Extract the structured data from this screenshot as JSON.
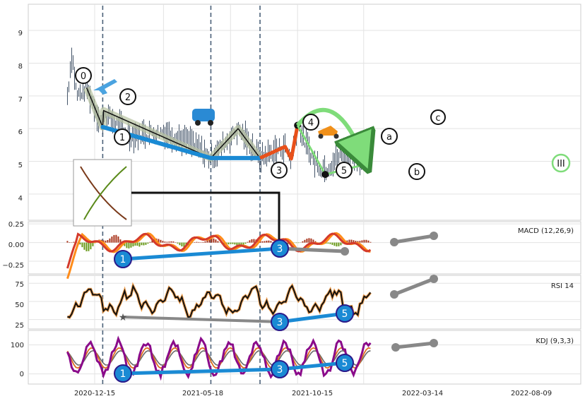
{
  "chart_data": {
    "type": "line",
    "x_ticks": [
      "2020-12-15",
      "2021-05-18",
      "2021-10-15",
      "2022-03-14",
      "2022-08-09"
    ],
    "markers": [
      "2021-01-02",
      "2021-09-01",
      "2021-12-20"
    ],
    "price": {
      "ylim": [
        3.2,
        9.8
      ],
      "y_ticks": [
        4,
        5,
        6,
        7,
        8,
        9
      ],
      "wave_points": [
        {
          "label": "0",
          "date": "2020-11-27",
          "value": 7.25
        },
        {
          "label": "1",
          "date": "2021-01-02",
          "value": 6.05
        },
        {
          "label": "2",
          "date": "2021-01-04",
          "value": 6.55
        },
        {
          "label": "3",
          "date": "2021-09-01",
          "value": 5.1
        },
        {
          "label": "4",
          "date": "2021-11-01",
          "value": 6.0
        },
        {
          "label": "5",
          "date": "2021-12-20",
          "value": 5.1
        },
        {
          "label": "a",
          "date": "2022-02-14",
          "value": 5.45
        },
        {
          "label": "b",
          "date": "2022-02-28",
          "value": 5.08
        },
        {
          "label": "c",
          "date": "2022-03-14",
          "value": 6.1
        }
      ],
      "projection_label": "III"
    },
    "macd": {
      "title": "MACD (12,26,9)",
      "ylim": [
        -0.42,
        0.28
      ],
      "y_ticks": [
        "0.25",
        "0.00",
        "−0.25"
      ],
      "wave_labels": [
        "1",
        "3"
      ]
    },
    "rsi": {
      "title": "RSI 14",
      "ylim": [
        12,
        86
      ],
      "y_ticks": [
        25,
        50,
        75
      ],
      "wave_labels": [
        "3",
        "5"
      ]
    },
    "kdj": {
      "title": "KDJ (9,3,3)",
      "ylim": [
        -35,
        150
      ],
      "y_ticks": [
        0,
        100
      ],
      "wave_labels": [
        "1",
        "3",
        "5"
      ]
    },
    "colors": {
      "trend_blue": "#1a8ad4",
      "orange_red": "#e8501a",
      "green_arc": "#7fdc7a",
      "macd_line": "#d43a2a",
      "macd_signal": "#ff8c1a",
      "rsi_line": "#111111",
      "kdj_j": "#8a0a8a",
      "kdj_k": "#e07020"
    }
  }
}
